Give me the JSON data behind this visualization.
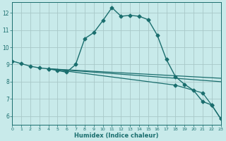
{
  "title": "",
  "xlabel": "Humidex (Indice chaleur)",
  "bg_color": "#c8eaea",
  "grid_color": "#a8c8c8",
  "line_color": "#1a6e6e",
  "xlim": [
    0,
    23
  ],
  "ylim": [
    5.5,
    12.6
  ],
  "xticks": [
    0,
    1,
    2,
    3,
    4,
    5,
    6,
    7,
    8,
    9,
    10,
    11,
    12,
    13,
    14,
    15,
    16,
    17,
    18,
    19,
    20,
    21,
    22,
    23
  ],
  "yticks": [
    6,
    7,
    8,
    9,
    10,
    11,
    12
  ],
  "lines": [
    {
      "x": [
        0,
        1,
        2,
        3,
        4,
        5,
        6,
        7,
        8,
        9,
        10,
        11,
        12,
        13,
        14,
        15,
        16,
        17,
        18,
        19,
        20,
        21,
        22,
        23
      ],
      "y": [
        9.2,
        9.05,
        8.9,
        8.8,
        8.75,
        8.65,
        8.55,
        9.0,
        10.5,
        10.85,
        11.55,
        12.3,
        11.8,
        11.85,
        11.8,
        11.6,
        10.7,
        9.3,
        8.3,
        7.85,
        7.5,
        6.85,
        6.65,
        5.85
      ],
      "marker": "D",
      "markersize": 2.5,
      "linewidth": 1.0,
      "has_marker": true
    },
    {
      "x": [
        4,
        23
      ],
      "y": [
        8.75,
        8.2
      ],
      "marker": null,
      "markersize": 0,
      "linewidth": 0.9,
      "has_marker": false
    },
    {
      "x": [
        4,
        18,
        23
      ],
      "y": [
        8.75,
        8.2,
        8.0
      ],
      "marker": null,
      "markersize": 0,
      "linewidth": 0.9,
      "has_marker": false
    },
    {
      "x": [
        4,
        18,
        21,
        22,
        23
      ],
      "y": [
        8.75,
        7.8,
        7.35,
        6.65,
        5.85
      ],
      "marker": "D",
      "markersize": 2.5,
      "linewidth": 0.9,
      "has_marker": true
    }
  ]
}
